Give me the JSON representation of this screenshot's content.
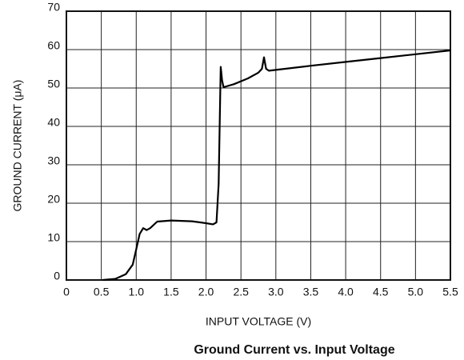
{
  "chart_data": {
    "type": "line",
    "title": "Ground Current vs. Input Voltage",
    "x_label": "INPUT VOLTAGE (V)",
    "y_label": "GROUND CURRENT (μA)",
    "x": [
      0.52,
      0.7,
      0.85,
      0.95,
      1.0,
      1.05,
      1.1,
      1.15,
      1.2,
      1.3,
      1.5,
      1.8,
      2.0,
      2.1,
      2.15,
      2.18,
      2.2,
      2.21,
      2.23,
      2.25,
      2.4,
      2.6,
      2.75,
      2.8,
      2.83,
      2.86,
      2.9,
      3.5,
      4.0,
      4.5,
      5.0,
      5.5
    ],
    "values": [
      0,
      0.3,
      1.5,
      4,
      8,
      12,
      13.5,
      13,
      13.5,
      15.2,
      15.5,
      15.3,
      14.8,
      14.5,
      15,
      25,
      45,
      55.5,
      52,
      50.2,
      51,
      52.5,
      54,
      55,
      58,
      55,
      54.5,
      55.8,
      56.8,
      57.8,
      58.8,
      59.8
    ],
    "color": "#000000",
    "xlim": [
      0,
      5.5
    ],
    "ylim": [
      0,
      70
    ],
    "xticks": [
      0,
      0.5,
      {
        "value": 1,
        "label": "1.0"
      },
      1.5,
      {
        "value": 2,
        "label": "2.0"
      },
      2.5,
      {
        "value": 3,
        "label": "3.0"
      },
      3.5,
      {
        "value": 4,
        "label": "4.0"
      },
      4.5,
      {
        "value": 5,
        "label": "5.0"
      },
      5.5
    ],
    "yticks": [
      0,
      10,
      20,
      30,
      40,
      50,
      60,
      70
    ],
    "grid": true
  }
}
